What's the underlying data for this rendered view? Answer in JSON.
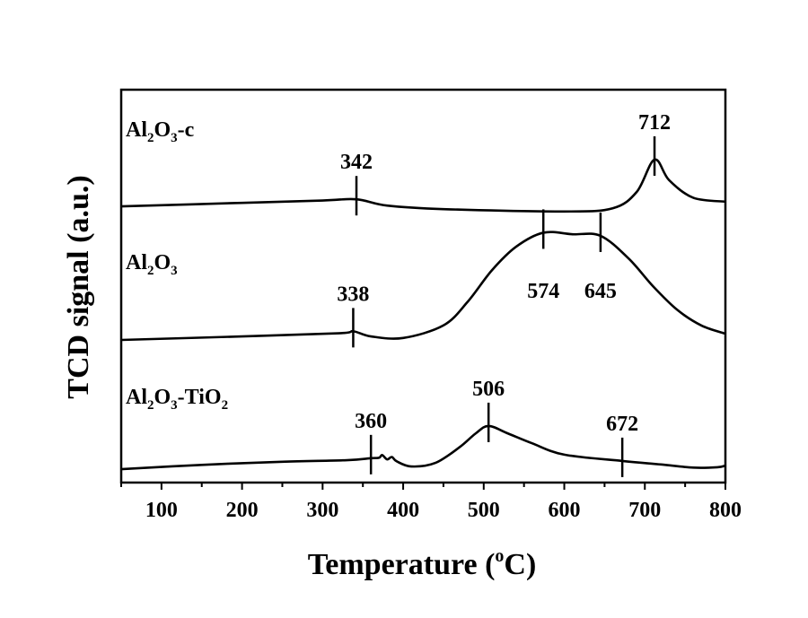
{
  "chart_data": {
    "type": "line",
    "title": "",
    "xlabel": "Temperature (oC)",
    "xlabel_parts": {
      "main": "Temperature (",
      "sup": "o",
      "end": "C)"
    },
    "ylabel": "TCD signal (a.u.)",
    "xlim": [
      50,
      800
    ],
    "ylim": [
      0,
      100
    ],
    "xticks": [
      100,
      200,
      300,
      400,
      500,
      600,
      700,
      800
    ],
    "grid": false,
    "legend": "none",
    "series": [
      {
        "name": "Al2O3-c",
        "x": [
          50,
          200,
          300,
          342,
          380,
          450,
          600,
          660,
          690,
          712,
          730,
          760,
          800
        ],
        "y": [
          70.3,
          71.2,
          71.8,
          72.1,
          70.5,
          69.6,
          69.0,
          69.8,
          74.0,
          82.2,
          77.0,
          72.5,
          71.5
        ],
        "peaks": [
          342,
          712
        ]
      },
      {
        "name": "Al2O3",
        "x": [
          50,
          200,
          320,
          338,
          360,
          400,
          450,
          480,
          510,
          540,
          574,
          610,
          645,
          680,
          710,
          740,
          770,
          800
        ],
        "y": [
          36.3,
          37.2,
          38.0,
          38.5,
          37.2,
          36.8,
          40.0,
          46.0,
          54.0,
          60.0,
          63.6,
          63.2,
          62.8,
          57.0,
          50.0,
          44.0,
          40.0,
          37.9
        ],
        "peaks": [
          338,
          574,
          645
        ]
      },
      {
        "name": "Al2O3-TiO2",
        "x": [
          50,
          150,
          250,
          330,
          360,
          370,
          374,
          380,
          386,
          392,
          410,
          440,
          470,
          490,
          506,
          530,
          560,
          600,
          672,
          720,
          760,
          790,
          800
        ],
        "y": [
          3.4,
          4.5,
          5.3,
          5.7,
          6.2,
          6.3,
          7.0,
          5.9,
          6.5,
          5.4,
          4.1,
          5.0,
          9.0,
          12.5,
          14.4,
          12.5,
          10.0,
          7.1,
          5.5,
          4.6,
          3.8,
          3.9,
          4.3
        ],
        "peaks": [
          360,
          506,
          672
        ]
      }
    ]
  }
}
